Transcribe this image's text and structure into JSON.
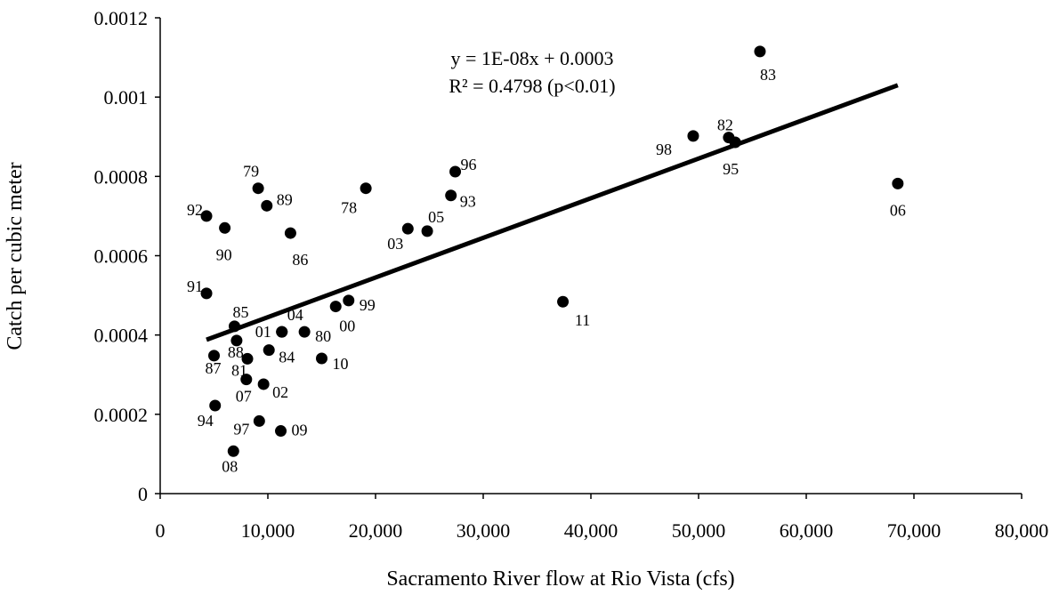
{
  "chart_data": {
    "type": "scatter",
    "title": "",
    "xlabel": "Sacramento River flow at Rio Vista (cfs)",
    "ylabel": "Catch per cubic meter",
    "xlim": [
      0,
      80000
    ],
    "ylim": [
      0,
      0.0012
    ],
    "x_ticks": [
      {
        "value": 0,
        "label": "0"
      },
      {
        "value": 10000,
        "label": "10,000"
      },
      {
        "value": 20000,
        "label": "20,000"
      },
      {
        "value": 30000,
        "label": "30,000"
      },
      {
        "value": 40000,
        "label": "40,000"
      },
      {
        "value": 50000,
        "label": "50,000"
      },
      {
        "value": 60000,
        "label": "60,000"
      },
      {
        "value": 70000,
        "label": "70,000"
      },
      {
        "value": 80000,
        "label": "80,000"
      }
    ],
    "y_ticks": [
      {
        "value": 0,
        "label": "0"
      },
      {
        "value": 0.0002,
        "label": "0.0002"
      },
      {
        "value": 0.0004,
        "label": "0.0004"
      },
      {
        "value": 0.0006,
        "label": "0.0006"
      },
      {
        "value": 0.0008,
        "label": "0.0008"
      },
      {
        "value": 0.001,
        "label": "0.001"
      },
      {
        "value": 0.0012,
        "label": "0.0012"
      }
    ],
    "grid": false,
    "legend": "none",
    "marker_color": "#000000",
    "points": [
      {
        "label": "83",
        "x": 55700,
        "y": 0.001115
      },
      {
        "label": "98",
        "x": 49500,
        "y": 0.000902
      },
      {
        "label": "82",
        "x": 52800,
        "y": 0.000898
      },
      {
        "label": "95",
        "x": 53400,
        "y": 0.000886
      },
      {
        "label": "06",
        "x": 68500,
        "y": 0.000782
      },
      {
        "label": "96",
        "x": 27400,
        "y": 0.000812
      },
      {
        "label": "93",
        "x": 27000,
        "y": 0.000752
      },
      {
        "label": "79",
        "x": 9100,
        "y": 0.00077
      },
      {
        "label": "78",
        "x": 19100,
        "y": 0.00077
      },
      {
        "label": "89",
        "x": 9900,
        "y": 0.000726
      },
      {
        "label": "92",
        "x": 4300,
        "y": 0.0007
      },
      {
        "label": "90",
        "x": 6000,
        "y": 0.00067
      },
      {
        "label": "86",
        "x": 12100,
        "y": 0.000657
      },
      {
        "label": "03",
        "x": 23000,
        "y": 0.000668
      },
      {
        "label": "05",
        "x": 24800,
        "y": 0.000662
      },
      {
        "label": "91",
        "x": 4300,
        "y": 0.000505
      },
      {
        "label": "11",
        "x": 37400,
        "y": 0.000484
      },
      {
        "label": "99",
        "x": 17500,
        "y": 0.000487
      },
      {
        "label": "00",
        "x": 16300,
        "y": 0.000472
      },
      {
        "label": "85",
        "x": 6900,
        "y": 0.000422
      },
      {
        "label": "04",
        "x": 11300,
        "y": 0.000408
      },
      {
        "label": "80",
        "x": 13400,
        "y": 0.000408
      },
      {
        "label": "01",
        "x": 11300,
        "y": 0.000408
      },
      {
        "label": "88",
        "x": 7100,
        "y": 0.000386
      },
      {
        "label": "84",
        "x": 10100,
        "y": 0.000362
      },
      {
        "label": "81",
        "x": 8100,
        "y": 0.00034
      },
      {
        "label": "87",
        "x": 5000,
        "y": 0.000348
      },
      {
        "label": "10",
        "x": 15000,
        "y": 0.000341
      },
      {
        "label": "07",
        "x": 8000,
        "y": 0.000288
      },
      {
        "label": "02",
        "x": 9600,
        "y": 0.000276
      },
      {
        "label": "94",
        "x": 5100,
        "y": 0.000222
      },
      {
        "label": "97",
        "x": 9200,
        "y": 0.000183
      },
      {
        "label": "09",
        "x": 11200,
        "y": 0.000158
      },
      {
        "label": "08",
        "x": 6800,
        "y": 0.000107
      }
    ],
    "trendline": {
      "x_start": 4300,
      "y_start": 0.000388,
      "x_end": 68500,
      "y_end": 0.00103,
      "equation": "y = 1E-08x + 0.0003",
      "r_squared": "R² = 0.4798 (p<0.01)"
    }
  }
}
